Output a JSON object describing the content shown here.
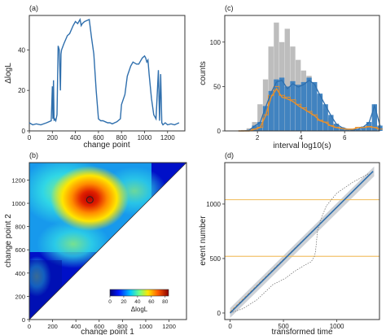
{
  "colors": {
    "blue": "#2f6fad",
    "bar_blue": "#3a7fc0",
    "gray": "#bdbdbd",
    "orange": "#e8902c",
    "band": "#c8ccd2",
    "hline": "#f2c36b"
  },
  "chart_data": [
    {
      "panel": "(a)",
      "type": "line",
      "xlabel": "change point",
      "ylabel": "ΔlogL",
      "xlim": [
        0,
        1350
      ],
      "ylim": [
        0,
        57
      ],
      "xticks": [
        "0",
        "200",
        "400",
        "600",
        "800",
        "1000",
        "1200"
      ],
      "yticks": [
        "0",
        "20",
        "40"
      ],
      "series": [
        {
          "x": [
            0,
            30,
            60,
            100,
            150,
            190,
            200,
            205,
            210,
            215,
            220,
            230,
            240,
            250,
            260,
            270,
            275,
            280,
            300,
            330,
            350,
            380,
            400,
            420,
            440,
            450,
            460,
            480,
            520,
            540,
            560,
            580,
            600,
            620,
            640,
            660,
            680,
            700,
            720,
            740,
            760,
            790,
            800,
            830,
            850,
            880,
            900,
            930,
            950,
            980,
            1000,
            1010,
            1020,
            1030,
            1040,
            1060,
            1080,
            1100,
            1120,
            1130,
            1140,
            1150,
            1160,
            1180,
            1200,
            1230,
            1260,
            1300
          ],
          "y": [
            4,
            3,
            3.5,
            3,
            4,
            5,
            22,
            6,
            25,
            5,
            6,
            5,
            8,
            42,
            40,
            20,
            38,
            40,
            43,
            47,
            48,
            52,
            54,
            53,
            55,
            52,
            53,
            54,
            55,
            46,
            38,
            20,
            6,
            5,
            5,
            4.5,
            4,
            4,
            3.5,
            4,
            4.5,
            6,
            13,
            18,
            27,
            32,
            34,
            33,
            33,
            36,
            37,
            36,
            34,
            35,
            28,
            16,
            8,
            6,
            30,
            5,
            28,
            4,
            3,
            4,
            3,
            3.5,
            3,
            4
          ]
        }
      ]
    },
    {
      "panel": "(b)",
      "type": "heatmap",
      "xlabel": "change point 1",
      "ylabel": "change point 2",
      "xlim": [
        0,
        1350
      ],
      "ylim": [
        0,
        1350
      ],
      "xticks": [
        "0",
        "200",
        "400",
        "600",
        "800",
        "1000",
        "1200"
      ],
      "yticks": [
        "0",
        "200",
        "400",
        "600",
        "800",
        "1000",
        "1200"
      ],
      "colorbar": {
        "label": "ΔlogL",
        "ticks": [
          "0",
          "20",
          "40",
          "60",
          "80"
        ],
        "range": [
          0,
          85
        ]
      },
      "peak": {
        "x": 520,
        "y": 1030,
        "value": 85
      }
    },
    {
      "panel": "(c)",
      "type": "bar",
      "xlabel": "interval log10(s)",
      "ylabel": "counts",
      "xlim": [
        0.5,
        7.6
      ],
      "ylim": [
        0,
        130
      ],
      "xticks": [
        "2",
        "4",
        "6"
      ],
      "yticks": [
        "0",
        "50",
        "100"
      ],
      "bin_width": 0.25,
      "bin_start": 1.0,
      "series": [
        {
          "name": "gray",
          "values": [
            0,
            1,
            3,
            10,
            30,
            58,
            95,
            122,
            100,
            115,
            95,
            80,
            68,
            62,
            52,
            40,
            25,
            15,
            8,
            2,
            1,
            0,
            0,
            0,
            0,
            0,
            0
          ]
        },
        {
          "name": "blue",
          "values": [
            0,
            0,
            1,
            6,
            10,
            28,
            45,
            58,
            60,
            50,
            56,
            52,
            55,
            60,
            55,
            42,
            30,
            18,
            8,
            4,
            2,
            1,
            2,
            5,
            10,
            30,
            6
          ]
        },
        {
          "name": "orange",
          "values": [
            0,
            0,
            0,
            2,
            4,
            18,
            40,
            50,
            40,
            38,
            35,
            30,
            26,
            22,
            18,
            12,
            10,
            6,
            4,
            3,
            2,
            2,
            4,
            4,
            5,
            4,
            2
          ]
        }
      ]
    },
    {
      "panel": "(d)",
      "type": "line",
      "xlabel": "transformed time",
      "ylabel": "event number",
      "xlim": [
        -50,
        1400
      ],
      "ylim": [
        -60,
        1380
      ],
      "xticks": [
        "0",
        "500",
        "1000"
      ],
      "yticks": [
        "0",
        "500",
        "1000"
      ],
      "hlines": [
        520,
        1040
      ]
    }
  ]
}
